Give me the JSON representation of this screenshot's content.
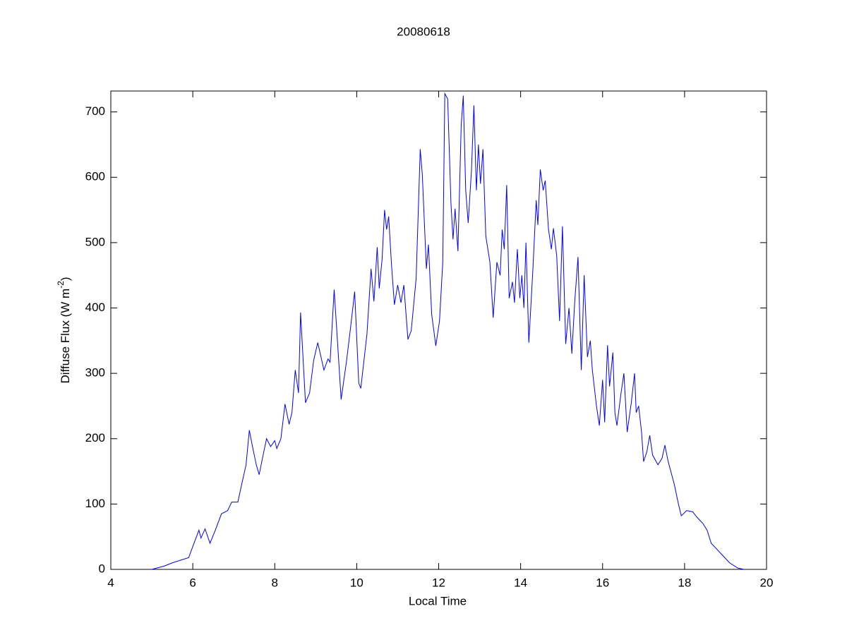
{
  "chart_data": {
    "type": "line",
    "title": "20080618",
    "x_label": "Local Time",
    "y_label": {
      "text": "Diffuse Flux (W m",
      "superscript": "-2",
      "suffix": ")"
    },
    "color": "#0000ff",
    "xlim": [
      4,
      20
    ],
    "ylim": [
      0,
      732
    ],
    "xticks": [
      4,
      6,
      8,
      10,
      12,
      14,
      16,
      18,
      20
    ],
    "yticks": [
      0,
      100,
      200,
      300,
      400,
      500,
      600,
      700
    ],
    "grid": false,
    "x": [
      5.0,
      5.3,
      5.5,
      5.7,
      5.9,
      6.0,
      6.15,
      6.2,
      6.3,
      6.42,
      6.55,
      6.7,
      6.85,
      6.95,
      7.1,
      7.2,
      7.3,
      7.38,
      7.45,
      7.55,
      7.62,
      7.7,
      7.8,
      7.9,
      8.0,
      8.05,
      8.15,
      8.25,
      8.35,
      8.42,
      8.5,
      8.58,
      8.63,
      8.75,
      8.85,
      8.95,
      9.05,
      9.2,
      9.3,
      9.35,
      9.45,
      9.55,
      9.62,
      9.75,
      9.85,
      9.95,
      10.05,
      10.1,
      10.25,
      10.35,
      10.42,
      10.5,
      10.55,
      10.62,
      10.68,
      10.73,
      10.78,
      10.85,
      10.92,
      11.0,
      11.08,
      11.15,
      11.25,
      11.33,
      11.45,
      11.55,
      11.6,
      11.7,
      11.75,
      11.83,
      11.93,
      12.02,
      12.1,
      12.15,
      12.22,
      12.3,
      12.35,
      12.4,
      12.47,
      12.55,
      12.6,
      12.66,
      12.72,
      12.8,
      12.86,
      12.92,
      12.97,
      13.02,
      13.08,
      13.15,
      13.25,
      13.33,
      13.42,
      13.5,
      13.55,
      13.6,
      13.66,
      13.72,
      13.8,
      13.85,
      13.92,
      13.98,
      14.03,
      14.08,
      14.13,
      14.2,
      14.3,
      14.38,
      14.42,
      14.48,
      14.55,
      14.6,
      14.68,
      14.75,
      14.8,
      14.88,
      14.95,
      15.02,
      15.1,
      15.18,
      15.25,
      15.32,
      15.4,
      15.48,
      15.55,
      15.63,
      15.7,
      15.75,
      15.85,
      15.92,
      16.0,
      16.05,
      16.12,
      16.17,
      16.25,
      16.3,
      16.35,
      16.45,
      16.52,
      16.6,
      16.7,
      16.78,
      16.82,
      16.88,
      16.95,
      17.0,
      17.08,
      17.15,
      17.22,
      17.35,
      17.45,
      17.52,
      17.6,
      17.75,
      17.85,
      17.92,
      18.05,
      18.2,
      18.3,
      18.45,
      18.55,
      18.65,
      18.8,
      18.95,
      19.1,
      19.3,
      19.45
    ],
    "values": [
      0,
      5,
      10,
      14,
      18,
      35,
      60,
      48,
      62,
      40,
      60,
      85,
      90,
      103,
      103,
      132,
      160,
      213,
      190,
      160,
      145,
      170,
      200,
      188,
      197,
      185,
      200,
      253,
      222,
      240,
      305,
      270,
      393,
      255,
      270,
      320,
      347,
      305,
      322,
      317,
      428,
      330,
      260,
      318,
      370,
      425,
      285,
      277,
      360,
      460,
      410,
      493,
      430,
      475,
      550,
      520,
      540,
      465,
      405,
      435,
      408,
      435,
      352,
      365,
      445,
      643,
      605,
      460,
      497,
      390,
      342,
      380,
      470,
      728,
      720,
      560,
      505,
      552,
      487,
      680,
      725,
      580,
      530,
      610,
      710,
      580,
      650,
      590,
      643,
      510,
      470,
      385,
      470,
      450,
      520,
      490,
      588,
      415,
      440,
      408,
      490,
      415,
      450,
      400,
      500,
      347,
      460,
      565,
      527,
      612,
      580,
      595,
      520,
      490,
      522,
      480,
      380,
      525,
      345,
      400,
      330,
      410,
      478,
      305,
      450,
      325,
      350,
      305,
      250,
      220,
      290,
      225,
      343,
      280,
      332,
      240,
      220,
      270,
      300,
      210,
      255,
      300,
      240,
      250,
      210,
      165,
      180,
      205,
      175,
      160,
      170,
      190,
      165,
      130,
      100,
      82,
      90,
      88,
      80,
      70,
      60,
      40,
      30,
      20,
      10,
      2,
      0
    ]
  }
}
